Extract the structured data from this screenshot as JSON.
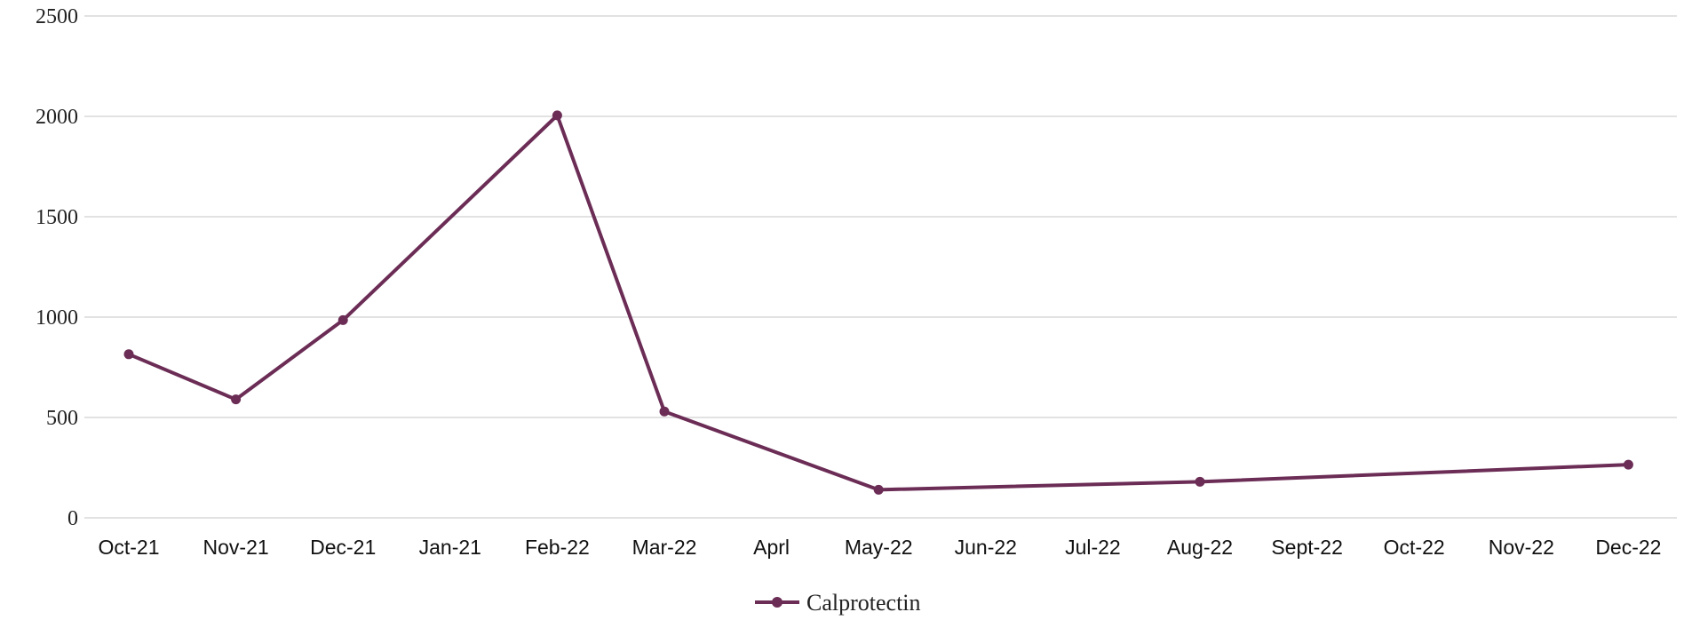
{
  "chart_data": {
    "type": "line",
    "title": "",
    "xlabel": "",
    "ylabel": "",
    "categories": [
      "Oct-21",
      "Nov-21",
      "Dec-21",
      "Jan-21",
      "Feb-22",
      "Mar-22",
      "Aprl",
      "May-22",
      "Jun-22",
      "Jul-22",
      "Aug-22",
      "Sept-22",
      "Oct-22",
      "Nov-22",
      "Dec-22"
    ],
    "series": [
      {
        "name": "Calprotectin",
        "points": [
          {
            "category": "Oct-21",
            "value": 815
          },
          {
            "category": "Nov-21",
            "value": 590
          },
          {
            "category": "Dec-21",
            "value": 985
          },
          {
            "category": "Feb-22",
            "value": 2005
          },
          {
            "category": "Mar-22",
            "value": 530
          },
          {
            "category": "May-22",
            "value": 140
          },
          {
            "category": "Aug-22",
            "value": 180
          },
          {
            "category": "Dec-22",
            "value": 265
          }
        ]
      }
    ],
    "ylim": [
      0,
      2500
    ],
    "yticks": [
      "0",
      "500",
      "1000",
      "1500",
      "2000",
      "2500"
    ],
    "grid": true,
    "legend": "bottom",
    "colors": {
      "series": "#6b2c55",
      "grid": "#d9d9d9"
    }
  }
}
